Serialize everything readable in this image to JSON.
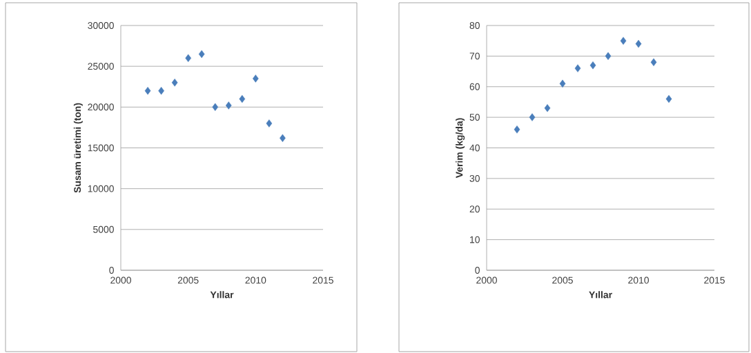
{
  "chart_data": [
    {
      "type": "scatter",
      "xlabel": "Yıllar",
      "ylabel": "Susam üretimi (ton)",
      "x": [
        2002,
        2003,
        2004,
        2005,
        2006,
        2007,
        2008,
        2009,
        2010,
        2011,
        2012
      ],
      "series": [
        {
          "color": "#4a7ebb",
          "values": [
            22000,
            22000,
            23000,
            26000,
            26500,
            20000,
            20200,
            21000,
            23500,
            18000,
            16200
          ]
        }
      ],
      "xlim": [
        2000,
        2015
      ],
      "xticks": [
        2000,
        2005,
        2010,
        2015
      ],
      "ylim": [
        0,
        30000
      ],
      "yticks": [
        0,
        5000,
        10000,
        15000,
        20000,
        25000,
        30000
      ],
      "grid": "y",
      "marker": "diamond"
    },
    {
      "type": "scatter",
      "xlabel": "Yıllar",
      "ylabel": "Verim (kg/da)",
      "x": [
        2002,
        2003,
        2004,
        2005,
        2006,
        2007,
        2008,
        2009,
        2010,
        2011,
        2012
      ],
      "series": [
        {
          "color": "#4a7ebb",
          "values": [
            46,
            50,
            53,
            61,
            66,
            67,
            70,
            75,
            74,
            68,
            56
          ]
        }
      ],
      "xlim": [
        2000,
        2015
      ],
      "xticks": [
        2000,
        2005,
        2010,
        2015
      ],
      "ylim": [
        0,
        80
      ],
      "yticks": [
        0,
        10,
        20,
        30,
        40,
        50,
        60,
        70,
        80
      ],
      "grid": "y",
      "marker": "diamond"
    }
  ]
}
